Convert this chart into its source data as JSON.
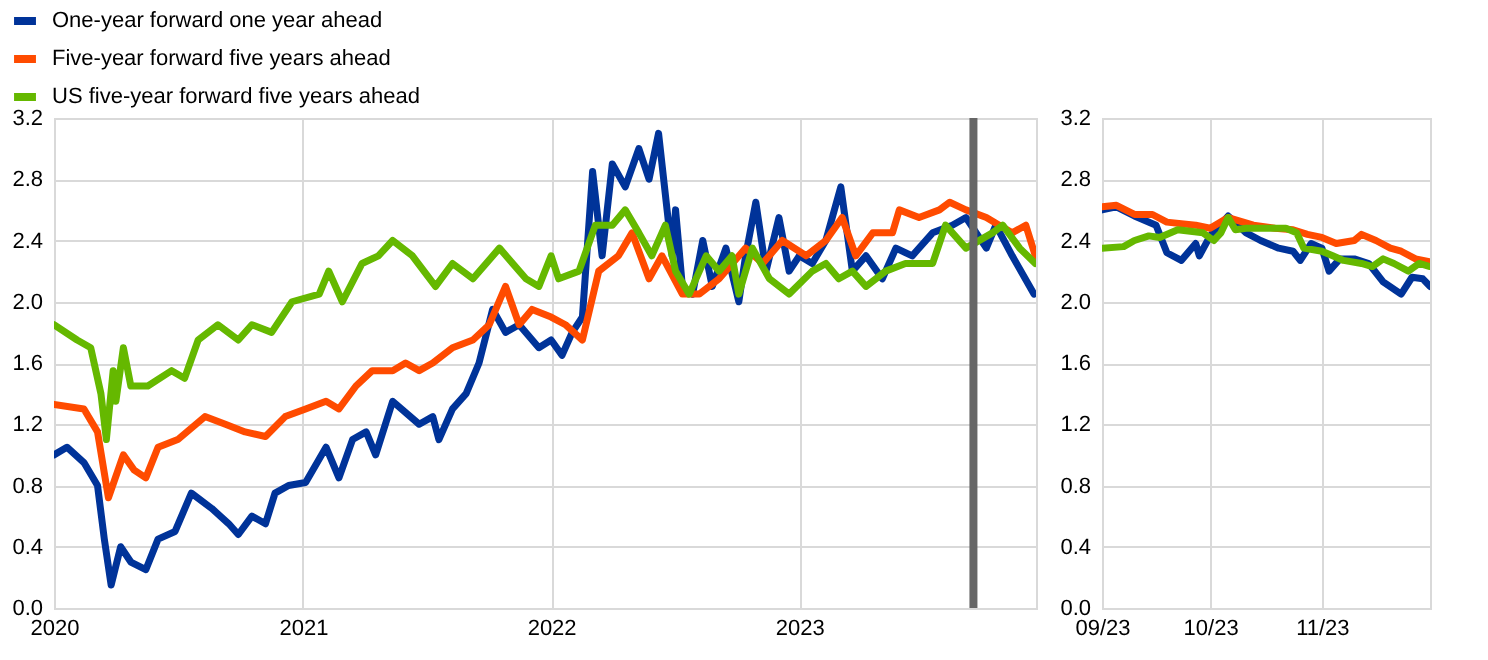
{
  "chart_data": [
    {
      "type": "line",
      "legend": "top left",
      "grid": true,
      "xlim": [
        "2020-01-01",
        "2023-12-15"
      ],
      "xticks": [
        {
          "value": "2020-01-01",
          "label": "2020"
        },
        {
          "value": "2021-01-01",
          "label": "2021"
        },
        {
          "value": "2022-01-01",
          "label": "2022"
        },
        {
          "value": "2023-01-01",
          "label": "2023"
        }
      ],
      "ylim": [
        0,
        3.2
      ],
      "yticks": [
        {
          "value": 0,
          "label": "0.0"
        },
        {
          "value": 0.4,
          "label": "0.4"
        },
        {
          "value": 0.8,
          "label": "0.8"
        },
        {
          "value": 1.2,
          "label": "1.2"
        },
        {
          "value": 1.6,
          "label": "1.6"
        },
        {
          "value": 2,
          "label": "2.0"
        },
        {
          "value": 2.4,
          "label": "2.4"
        },
        {
          "value": 2.8,
          "label": "2.8"
        },
        {
          "value": 3.2,
          "label": "3.2"
        }
      ],
      "ref_lines": [
        {
          "axis": "x",
          "value": "2023-09-14",
          "color": "#666666"
        }
      ],
      "series": [
        {
          "name": "One-year forward one year ahead",
          "color": "#003399",
          "x": [
            "2020-01-01",
            "2020-01-20",
            "2020-02-14",
            "2020-03-05",
            "2020-03-15",
            "2020-03-25",
            "2020-04-08",
            "2020-04-23",
            "2020-05-15",
            "2020-06-02",
            "2020-06-27",
            "2020-07-21",
            "2020-08-20",
            "2020-09-14",
            "2020-09-28",
            "2020-10-18",
            "2020-11-07",
            "2020-11-21",
            "2020-12-11",
            "2021-01-05",
            "2021-02-04",
            "2021-02-23",
            "2021-03-15",
            "2021-04-04",
            "2021-04-18",
            "2021-05-13",
            "2021-06-21",
            "2021-07-11",
            "2021-07-20",
            "2021-08-09",
            "2021-08-29",
            "2021-09-17",
            "2021-10-07",
            "2021-10-26",
            "2021-11-15",
            "2021-12-14",
            "2022-01-01",
            "2022-01-17",
            "2022-02-01",
            "2022-02-16",
            "2022-03-03",
            "2022-03-17",
            "2022-04-01",
            "2022-04-20",
            "2022-05-10",
            "2022-05-25",
            "2022-06-08",
            "2022-06-28",
            "2022-07-03",
            "2022-07-13",
            "2022-07-28",
            "2022-08-12",
            "2022-08-26",
            "2022-09-15",
            "2022-10-04",
            "2022-10-14",
            "2022-10-29",
            "2022-11-13",
            "2022-12-02",
            "2022-12-17",
            "2023-01-01",
            "2023-01-20",
            "2023-02-09",
            "2023-03-03",
            "2023-03-20",
            "2023-04-09",
            "2023-05-03",
            "2023-05-23",
            "2023-06-16",
            "2023-07-16",
            "2023-08-14",
            "2023-09-03",
            "2023-10-03",
            "2023-10-17",
            "2023-11-10",
            "2023-12-12"
          ],
          "values": [
            1.0,
            1.05,
            0.95,
            0.8,
            0.45,
            0.15,
            0.4,
            0.3,
            0.25,
            0.45,
            0.5,
            0.75,
            0.65,
            0.55,
            0.48,
            0.6,
            0.55,
            0.75,
            0.8,
            0.82,
            1.05,
            0.85,
            1.1,
            1.15,
            1.0,
            1.35,
            1.2,
            1.25,
            1.1,
            1.3,
            1.4,
            1.6,
            1.95,
            1.8,
            1.85,
            1.7,
            1.75,
            1.65,
            1.8,
            1.9,
            2.85,
            2.3,
            2.9,
            2.75,
            3.0,
            2.8,
            3.1,
            2.3,
            2.6,
            2.1,
            2.05,
            2.4,
            2.1,
            2.35,
            2.0,
            2.3,
            2.65,
            2.2,
            2.55,
            2.2,
            2.3,
            2.25,
            2.4,
            2.75,
            2.2,
            2.3,
            2.15,
            2.35,
            2.3,
            2.45,
            2.5,
            2.55,
            2.35,
            2.5,
            2.3,
            2.05
          ]
        },
        {
          "name": "Five-year forward five years ahead",
          "color": "#ff4b00",
          "x": [
            "2020-01-01",
            "2020-02-14",
            "2020-03-05",
            "2020-03-21",
            "2020-04-08",
            "2020-04-12",
            "2020-04-28",
            "2020-05-15",
            "2020-06-02",
            "2020-07-01",
            "2020-08-10",
            "2020-09-09",
            "2020-10-08",
            "2020-11-07",
            "2020-12-06",
            "2021-01-05",
            "2021-02-04",
            "2021-02-23",
            "2021-03-20",
            "2021-04-13",
            "2021-05-13",
            "2021-06-01",
            "2021-06-21",
            "2021-07-11",
            "2021-08-09",
            "2021-09-08",
            "2021-10-02",
            "2021-10-26",
            "2021-11-15",
            "2021-12-04",
            "2022-01-01",
            "2022-01-22",
            "2022-02-16",
            "2022-03-12",
            "2022-04-10",
            "2022-04-30",
            "2022-05-25",
            "2022-06-13",
            "2022-07-13",
            "2022-08-07",
            "2022-09-05",
            "2022-10-14",
            "2022-11-08",
            "2022-12-07",
            "2023-01-11",
            "2023-02-09",
            "2023-03-05",
            "2023-03-25",
            "2023-04-19",
            "2023-05-18",
            "2023-05-28",
            "2023-06-26",
            "2023-07-26",
            "2023-08-10",
            "2023-09-03",
            "2023-10-03",
            "2023-10-22",
            "2023-11-10",
            "2023-11-30",
            "2023-12-14"
          ],
          "values": [
            1.33,
            1.3,
            1.15,
            0.72,
            0.95,
            1.0,
            0.9,
            0.85,
            1.05,
            1.1,
            1.25,
            1.2,
            1.15,
            1.12,
            1.25,
            1.3,
            1.35,
            1.3,
            1.45,
            1.55,
            1.55,
            1.6,
            1.55,
            1.6,
            1.7,
            1.75,
            1.85,
            2.1,
            1.85,
            1.95,
            1.9,
            1.85,
            1.75,
            2.2,
            2.3,
            2.45,
            2.15,
            2.3,
            2.05,
            2.05,
            2.15,
            2.35,
            2.25,
            2.4,
            2.3,
            2.4,
            2.55,
            2.3,
            2.45,
            2.45,
            2.6,
            2.55,
            2.6,
            2.65,
            2.6,
            2.55,
            2.5,
            2.45,
            2.5,
            2.3
          ]
        },
        {
          "name": "US five-year forward five years ahead",
          "color": "#65b800",
          "x": [
            "2020-01-01",
            "2020-02-04",
            "2020-02-24",
            "2020-03-10",
            "2020-03-18",
            "2020-03-28",
            "2020-04-01",
            "2020-04-12",
            "2020-04-23",
            "2020-05-18",
            "2020-06-22",
            "2020-07-11",
            "2020-07-31",
            "2020-08-29",
            "2020-09-28",
            "2020-10-18",
            "2020-11-16",
            "2020-12-16",
            "2021-01-25",
            "2021-02-08",
            "2021-02-28",
            "2021-03-29",
            "2021-04-22",
            "2021-05-13",
            "2021-06-11",
            "2021-07-15",
            "2021-08-09",
            "2021-09-08",
            "2021-10-17",
            "2021-11-25",
            "2021-12-14",
            "2022-01-01",
            "2022-01-12",
            "2022-02-11",
            "2022-03-07",
            "2022-04-01",
            "2022-04-20",
            "2022-05-10",
            "2022-05-29",
            "2022-06-18",
            "2022-07-03",
            "2022-07-23",
            "2022-08-17",
            "2022-09-05",
            "2022-09-24",
            "2022-10-04",
            "2022-10-24",
            "2022-11-18",
            "2022-12-17",
            "2023-01-20",
            "2023-02-09",
            "2023-02-28",
            "2023-03-20",
            "2023-04-09",
            "2023-05-08",
            "2023-06-06",
            "2023-07-16",
            "2023-08-04",
            "2023-09-03",
            "2023-10-12",
            "2023-10-27",
            "2023-11-21",
            "2023-12-14"
          ],
          "values": [
            1.85,
            1.75,
            1.7,
            1.4,
            1.1,
            1.55,
            1.35,
            1.7,
            1.45,
            1.45,
            1.55,
            1.5,
            1.75,
            1.85,
            1.75,
            1.85,
            1.8,
            2.0,
            2.05,
            2.2,
            2.0,
            2.25,
            2.3,
            2.4,
            2.3,
            2.1,
            2.25,
            2.15,
            2.35,
            2.15,
            2.1,
            2.3,
            2.15,
            2.2,
            2.5,
            2.5,
            2.6,
            2.45,
            2.3,
            2.5,
            2.2,
            2.05,
            2.3,
            2.2,
            2.3,
            2.05,
            2.35,
            2.15,
            2.05,
            2.2,
            2.25,
            2.15,
            2.2,
            2.1,
            2.2,
            2.25,
            2.25,
            2.5,
            2.35,
            2.45,
            2.5,
            2.35,
            2.25
          ]
        }
      ]
    },
    {
      "type": "line",
      "grid": true,
      "xlim": [
        "2023-09-01",
        "2023-12-01"
      ],
      "xticks": [
        {
          "value": "2023-09-01",
          "label": "09/23"
        },
        {
          "value": "2023-10-01",
          "label": "10/23"
        },
        {
          "value": "2023-11-01",
          "label": "11/23"
        },
        {
          "value": "2023-12-01",
          "label": null
        }
      ],
      "ylim": [
        0,
        3.2
      ],
      "yticks": [
        {
          "value": 0,
          "label": "0.0"
        },
        {
          "value": 0.4,
          "label": "0.4"
        },
        {
          "value": 0.8,
          "label": "0.8"
        },
        {
          "value": 1.2,
          "label": "1.2"
        },
        {
          "value": 1.6,
          "label": "1.6"
        },
        {
          "value": 2,
          "label": "2.0"
        },
        {
          "value": 2.4,
          "label": "2.4"
        },
        {
          "value": 2.8,
          "label": "2.8"
        },
        {
          "value": 3.2,
          "label": "3.2"
        }
      ],
      "series": [
        {
          "color": "#003399",
          "x": [
            "2023-09-01",
            "2023-09-05",
            "2023-09-10",
            "2023-09-16",
            "2023-09-19",
            "2023-09-23",
            "2023-09-27",
            "2023-09-28",
            "2023-10-01",
            "2023-10-06",
            "2023-10-11",
            "2023-10-15",
            "2023-10-20",
            "2023-10-24",
            "2023-10-26",
            "2023-10-29",
            "2023-11-01",
            "2023-11-03",
            "2023-11-06",
            "2023-11-10",
            "2023-11-14",
            "2023-11-18",
            "2023-11-23",
            "2023-11-26",
            "2023-11-29",
            "2023-12-01"
          ],
          "values": [
            2.6,
            2.62,
            2.56,
            2.5,
            2.32,
            2.27,
            2.38,
            2.3,
            2.43,
            2.56,
            2.45,
            2.4,
            2.35,
            2.33,
            2.27,
            2.38,
            2.35,
            2.2,
            2.28,
            2.28,
            2.25,
            2.13,
            2.05,
            2.16,
            2.15,
            2.1
          ]
        },
        {
          "color": "#ff4b00",
          "x": [
            "2023-09-01",
            "2023-09-05",
            "2023-09-10",
            "2023-09-15",
            "2023-09-19",
            "2023-09-27",
            "2023-10-01",
            "2023-10-06",
            "2023-10-13",
            "2023-10-19",
            "2023-10-24",
            "2023-10-28",
            "2023-11-01",
            "2023-11-05",
            "2023-11-10",
            "2023-11-12",
            "2023-11-16",
            "2023-11-20",
            "2023-11-23",
            "2023-11-27",
            "2023-12-01"
          ],
          "values": [
            2.62,
            2.63,
            2.57,
            2.57,
            2.52,
            2.5,
            2.48,
            2.55,
            2.5,
            2.48,
            2.47,
            2.44,
            2.42,
            2.38,
            2.4,
            2.44,
            2.4,
            2.35,
            2.33,
            2.28,
            2.26
          ]
        },
        {
          "color": "#65b800",
          "x": [
            "2023-09-01",
            "2023-09-07",
            "2023-09-10",
            "2023-09-14",
            "2023-09-17",
            "2023-09-22",
            "2023-09-29",
            "2023-10-02",
            "2023-10-04",
            "2023-10-06",
            "2023-10-08",
            "2023-10-11",
            "2023-10-19",
            "2023-10-22",
            "2023-10-25",
            "2023-10-27",
            "2023-11-01",
            "2023-11-04",
            "2023-11-07",
            "2023-11-12",
            "2023-11-15",
            "2023-11-18",
            "2023-11-21",
            "2023-11-25",
            "2023-11-28",
            "2023-12-01"
          ],
          "values": [
            2.35,
            2.36,
            2.4,
            2.43,
            2.42,
            2.47,
            2.45,
            2.4,
            2.45,
            2.55,
            2.47,
            2.48,
            2.48,
            2.48,
            2.45,
            2.35,
            2.33,
            2.3,
            2.27,
            2.25,
            2.23,
            2.28,
            2.25,
            2.2,
            2.25,
            2.23
          ]
        }
      ]
    }
  ]
}
